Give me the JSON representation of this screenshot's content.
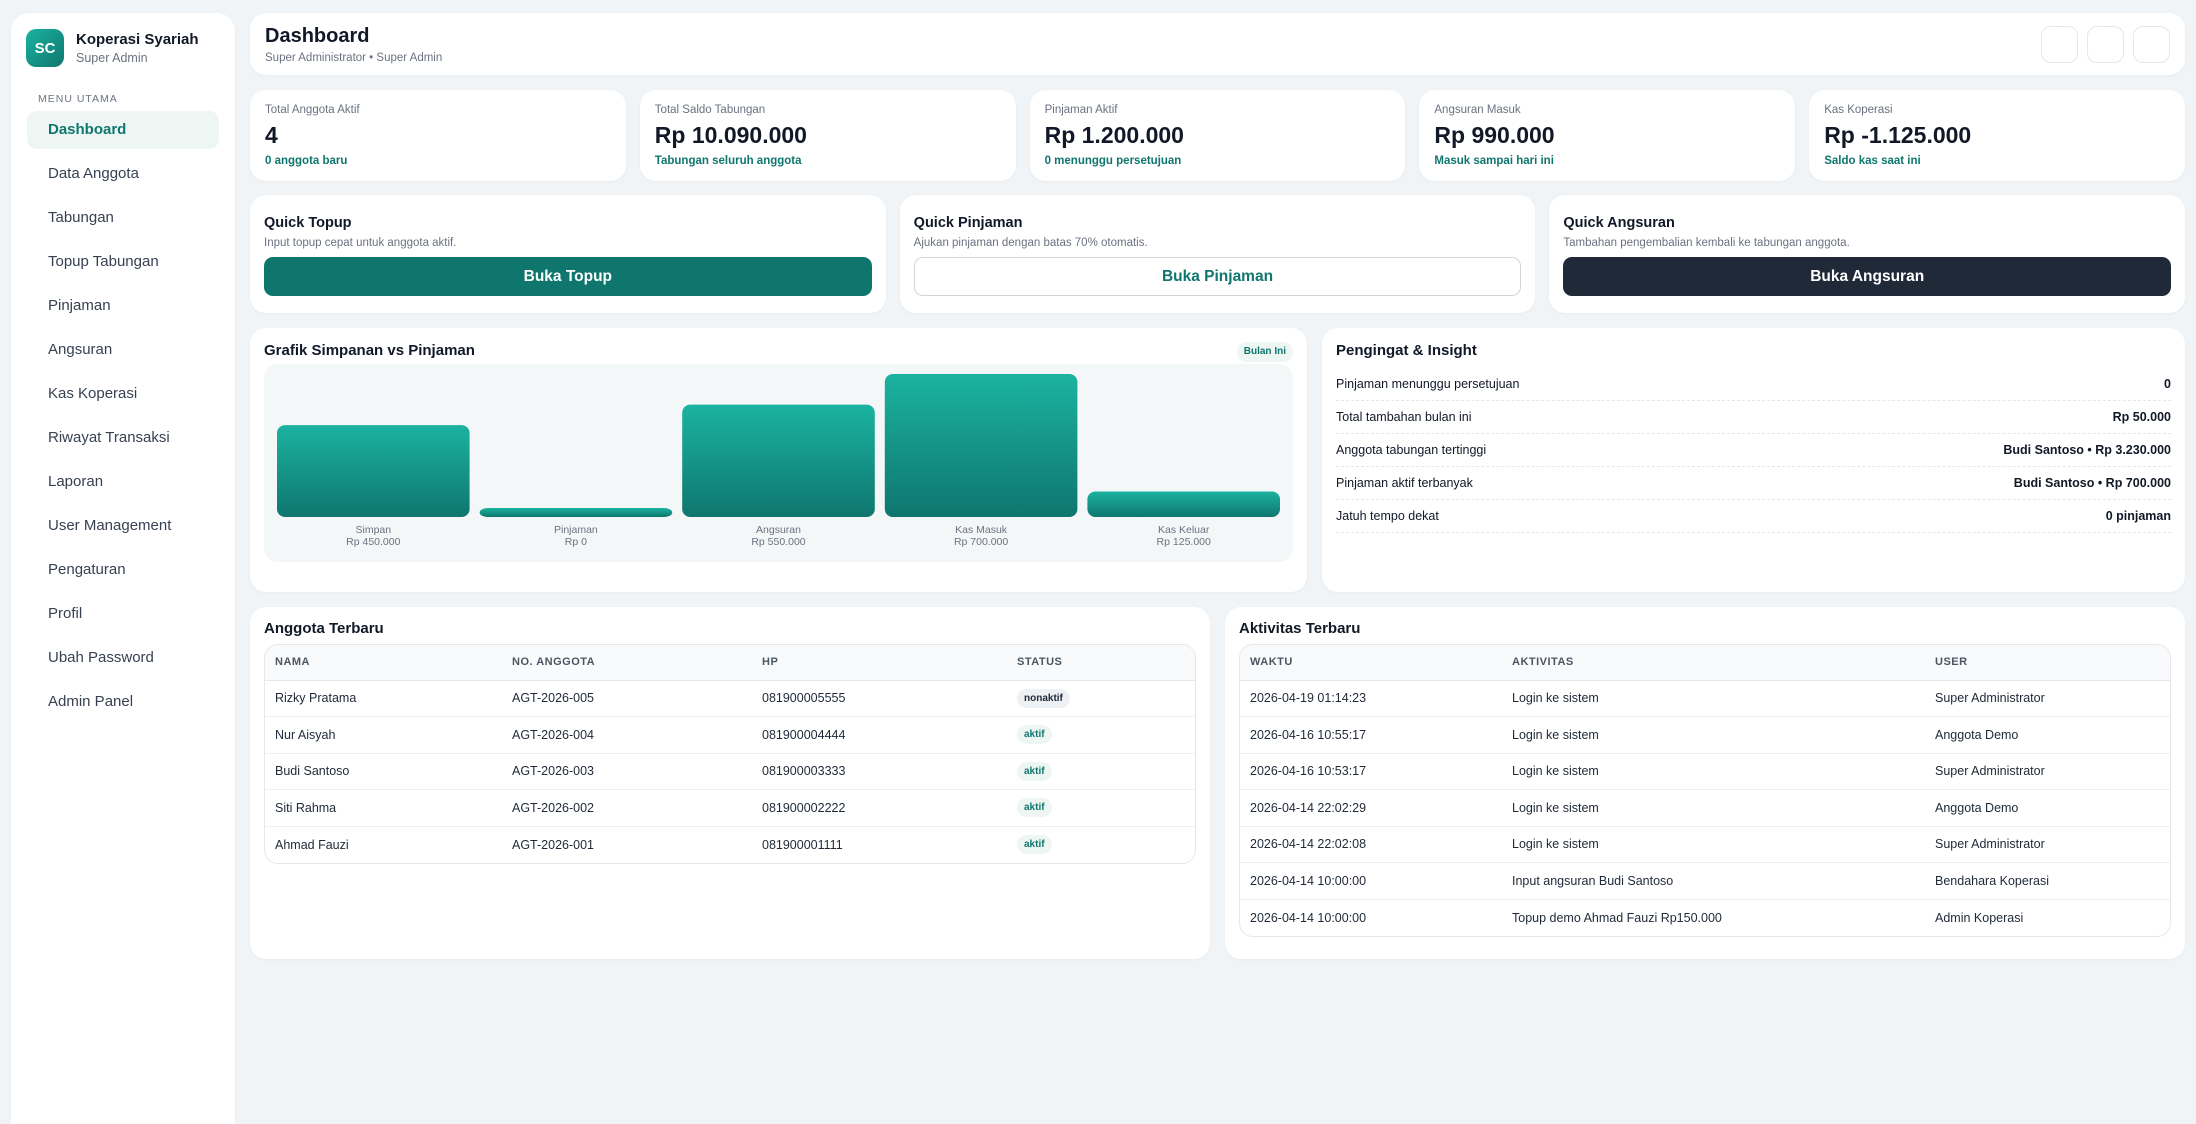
{
  "brand": {
    "logo": "SC",
    "name": "Koperasi Syariah",
    "role": "Super Admin"
  },
  "menu_title": "MENU UTAMA",
  "nav": [
    {
      "label": "Dashboard",
      "active": true
    },
    {
      "label": "Data Anggota"
    },
    {
      "label": "Tabungan"
    },
    {
      "label": "Topup Tabungan"
    },
    {
      "label": "Pinjaman"
    },
    {
      "label": "Angsuran"
    },
    {
      "label": "Kas Koperasi"
    },
    {
      "label": "Riwayat Transaksi"
    },
    {
      "label": "Laporan"
    },
    {
      "label": "User Management"
    },
    {
      "label": "Pengaturan"
    },
    {
      "label": "Profil"
    },
    {
      "label": "Ubah Password"
    },
    {
      "label": "Admin Panel"
    }
  ],
  "header": {
    "title": "Dashboard",
    "subtitle": "Super Administrator • Super Admin"
  },
  "stats": [
    {
      "label": "Total Anggota Aktif",
      "value": "4",
      "note": "0 anggota baru"
    },
    {
      "label": "Total Saldo Tabungan",
      "value": "Rp 10.090.000",
      "note": "Tabungan seluruh anggota"
    },
    {
      "label": "Pinjaman Aktif",
      "value": "Rp 1.200.000",
      "note": "0 menunggu persetujuan"
    },
    {
      "label": "Angsuran Masuk",
      "value": "Rp 990.000",
      "note": "Masuk sampai hari ini"
    },
    {
      "label": "Kas Koperasi",
      "value": "Rp -1.125.000",
      "note": "Saldo kas saat ini"
    }
  ],
  "quick": [
    {
      "title": "Quick Topup",
      "desc": "Input topup cepat untuk anggota aktif.",
      "button": "Buka Topup"
    },
    {
      "title": "Quick Pinjaman",
      "desc": "Ajukan pinjaman dengan batas 70% otomatis.",
      "button": "Buka Pinjaman"
    },
    {
      "title": "Quick Angsuran",
      "desc": "Tambahan pengembalian kembali ke tabungan anggota.",
      "button": "Buka Angsuran"
    }
  ],
  "chart": {
    "title": "Grafik Simpanan vs Pinjaman",
    "badge": "Bulan Ini"
  },
  "chart_data": {
    "type": "bar",
    "title": "Grafik Simpanan vs Pinjaman",
    "categories": [
      "Simpan",
      "Pinjaman",
      "Angsuran",
      "Kas Masuk",
      "Kas Keluar"
    ],
    "values": [
      450000,
      0,
      550000,
      700000,
      125000
    ],
    "value_labels": [
      "Rp 450.000",
      "Rp 0",
      "Rp 550.000",
      "Rp 700.000",
      "Rp 125.000"
    ],
    "ylim": [
      0,
      700000
    ],
    "grid": false,
    "colors": {
      "bar_top": "#1bb3a0",
      "bar_bottom": "#0f766e"
    }
  },
  "insight": {
    "title": "Pengingat & Insight",
    "rows": [
      {
        "label": "Pinjaman menunggu persetujuan",
        "value": "0"
      },
      {
        "label": "Total tambahan bulan ini",
        "value": "Rp 50.000"
      },
      {
        "label": "Anggota tabungan tertinggi",
        "value": "Budi Santoso • Rp 3.230.000"
      },
      {
        "label": "Pinjaman aktif terbanyak",
        "value": "Budi Santoso • Rp 700.000"
      },
      {
        "label": "Jatuh tempo dekat",
        "value": "0 pinjaman"
      }
    ]
  },
  "members": {
    "title": "Anggota Terbaru",
    "columns": [
      "NAMA",
      "NO. ANGGOTA",
      "HP",
      "STATUS"
    ],
    "rows": [
      [
        "Rizky Pratama",
        "AGT-2026-005",
        "081900005555",
        "nonaktif"
      ],
      [
        "Nur Aisyah",
        "AGT-2026-004",
        "081900004444",
        "aktif"
      ],
      [
        "Budi Santoso",
        "AGT-2026-003",
        "081900003333",
        "aktif"
      ],
      [
        "Siti Rahma",
        "AGT-2026-002",
        "081900002222",
        "aktif"
      ],
      [
        "Ahmad Fauzi",
        "AGT-2026-001",
        "081900001111",
        "aktif"
      ]
    ]
  },
  "activity": {
    "title": "Aktivitas Terbaru",
    "columns": [
      "WAKTU",
      "AKTIVITAS",
      "USER"
    ],
    "rows": [
      [
        "2026-04-19 01:14:23",
        "Login ke sistem",
        "Super Administrator"
      ],
      [
        "2026-04-16 10:55:17",
        "Login ke sistem",
        "Anggota Demo"
      ],
      [
        "2026-04-16 10:53:17",
        "Login ke sistem",
        "Super Administrator"
      ],
      [
        "2026-04-14 22:02:29",
        "Login ke sistem",
        "Anggota Demo"
      ],
      [
        "2026-04-14 22:02:08",
        "Login ke sistem",
        "Super Administrator"
      ],
      [
        "2026-04-14 10:00:00",
        "Input angsuran Budi Santoso",
        "Bendahara Koperasi"
      ],
      [
        "2026-04-14 10:00:00",
        "Topup demo Ahmad Fauzi Rp150.000",
        "Admin Koperasi"
      ]
    ]
  }
}
